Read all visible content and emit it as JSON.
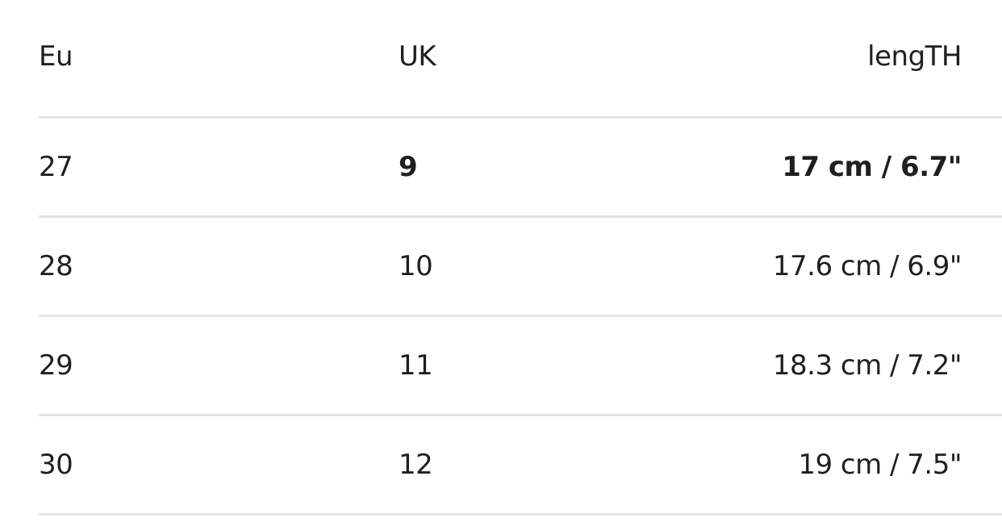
{
  "table": {
    "headers": [
      "Eu",
      "UK",
      "lengTH"
    ],
    "rows": [
      {
        "eu": "27",
        "uk": "9",
        "length": "17 cm / 6.7\"",
        "highlighted": true
      },
      {
        "eu": "28",
        "uk": "10",
        "length": "17.6 cm / 6.9\""
      },
      {
        "eu": "29",
        "uk": "11",
        "length": "18.3 cm / 7.2\""
      },
      {
        "eu": "30",
        "uk": "12",
        "length": "19 cm / 7.5\""
      }
    ]
  }
}
